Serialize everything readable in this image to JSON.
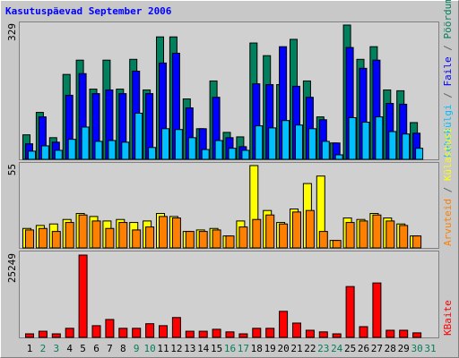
{
  "title": "Kasutuspäevad September 2006",
  "legend_separator": "/",
  "chart_data": [
    {
      "type": "bar",
      "series": [
        {
          "name": "Pöördumisi",
          "color": "#00805c",
          "values": [
            60,
            115,
            53,
            208,
            243,
            172,
            243,
            172,
            245,
            170,
            300,
            300,
            148,
            75,
            192,
            66,
            55,
            285,
            254,
            183,
            294,
            192,
            104,
            40,
            329,
            245,
            276,
            170,
            168,
            90,
            null
          ]
        },
        {
          "name": "Faile",
          "color": "#0000ff",
          "values": [
            38,
            104,
            42,
            157,
            210,
            161,
            170,
            161,
            216,
            161,
            236,
            260,
            126,
            75,
            152,
            53,
            31,
            185,
            183,
            276,
            179,
            152,
            97,
            40,
            274,
            223,
            243,
            137,
            135,
            64,
            null
          ]
        },
        {
          "name": "Lehekülgi",
          "color": "#00c0ff",
          "values": [
            20,
            33,
            22,
            49,
            79,
            44,
            46,
            42,
            113,
            29,
            75,
            73,
            53,
            24,
            46,
            27,
            22,
            82,
            77,
            95,
            84,
            75,
            44,
            11,
            102,
            91,
            104,
            68,
            62,
            27,
            null
          ]
        }
      ],
      "ylim": [
        0,
        329
      ],
      "yticks": [
        329
      ]
    },
    {
      "type": "bar",
      "series": [
        {
          "name": "Külastusi",
          "color": "#ffff00",
          "values": [
            13,
            15,
            16,
            19,
            23,
            21,
            18,
            19,
            17,
            18,
            23,
            21,
            11,
            12,
            13,
            8,
            18,
            55,
            25,
            17,
            26,
            43,
            48,
            5,
            20,
            19,
            23,
            20,
            16,
            8,
            null
          ]
        },
        {
          "name": "Arvuteid",
          "color": "#ff8000",
          "values": [
            12,
            13,
            11,
            17,
            22,
            18,
            13,
            17,
            12,
            14,
            21,
            20,
            11,
            11,
            12,
            8,
            14,
            19,
            22,
            16,
            24,
            25,
            11,
            5,
            17,
            18,
            22,
            18,
            15,
            8,
            null
          ]
        }
      ],
      "ylim": [
        0,
        55
      ],
      "yticks": [
        55
      ]
    },
    {
      "type": "bar",
      "series": [
        {
          "name": "KBaite",
          "color": "#ff0000",
          "values": [
            1100,
            1900,
            1100,
            2800,
            25249,
            3600,
            5500,
            2800,
            2800,
            4200,
            3600,
            6100,
            1900,
            1900,
            2500,
            1700,
            1100,
            2800,
            2800,
            8000,
            4400,
            2200,
            1700,
            1100,
            15600,
            3300,
            16700,
            2200,
            2200,
            1400,
            null
          ]
        }
      ],
      "ylim": [
        0,
        25249
      ],
      "yticks": [
        25249
      ],
      "categories": [
        "1",
        "2",
        "3",
        "4",
        "5",
        "6",
        "7",
        "8",
        "9",
        "10",
        "11",
        "12",
        "13",
        "14",
        "15",
        "16",
        "17",
        "18",
        "19",
        "20",
        "21",
        "22",
        "23",
        "24",
        "25",
        "26",
        "27",
        "28",
        "29",
        "30",
        "31"
      ],
      "category_colors": [
        "#000000",
        "#00805c",
        "#00805c",
        "#000000",
        "#000000",
        "#000000",
        "#000000",
        "#000000",
        "#00805c",
        "#00805c",
        "#000000",
        "#000000",
        "#000000",
        "#000000",
        "#000000",
        "#00805c",
        "#00805c",
        "#000000",
        "#000000",
        "#000000",
        "#000000",
        "#000000",
        "#00805c",
        "#00805c",
        "#000000",
        "#000000",
        "#000000",
        "#000000",
        "#000000",
        "#00805c",
        "#00805c"
      ]
    }
  ]
}
